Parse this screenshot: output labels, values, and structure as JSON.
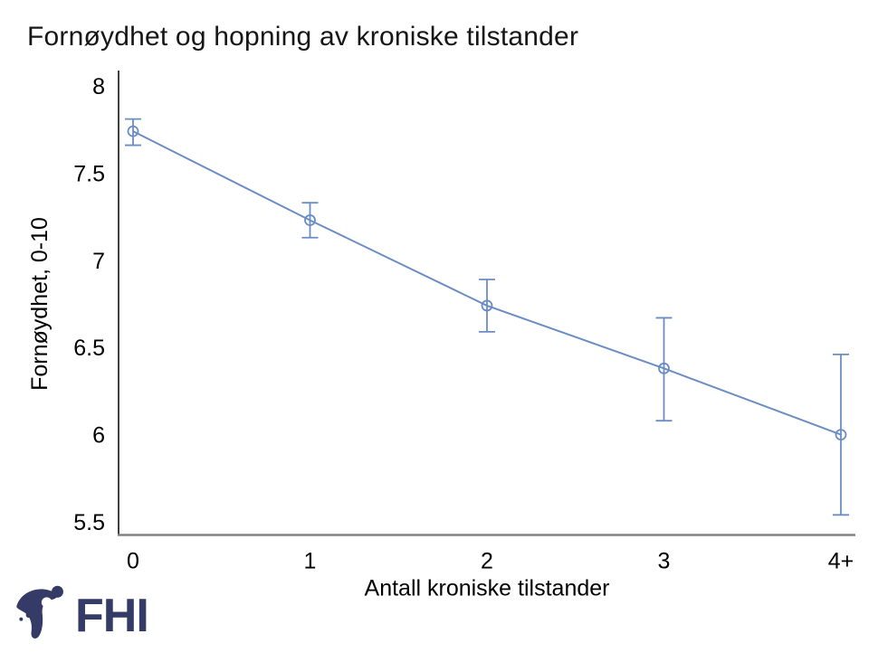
{
  "logo": {
    "text": "FHI",
    "color": "#333b66"
  },
  "chart_data": {
    "type": "line",
    "title": "Fornøydhet og hopning av kroniske tilstander",
    "xlabel": "Antall kroniske tilstander",
    "ylabel": "Fornøydhet, 0-10",
    "categories": [
      "0",
      "1",
      "2",
      "3",
      "4+"
    ],
    "series": [
      {
        "name": "Fornøydhet",
        "values": [
          7.74,
          7.23,
          6.74,
          6.38,
          6.0
        ],
        "ci_low": [
          7.66,
          7.13,
          6.59,
          6.08,
          5.54
        ],
        "ci_high": [
          7.81,
          7.33,
          6.89,
          6.67,
          6.46
        ]
      }
    ],
    "ylim": [
      5.5,
      8
    ],
    "y_ticks": [
      "8",
      "7.5",
      "7",
      "6.5",
      "6",
      "5.5"
    ],
    "grid": false,
    "legend": "none",
    "marker": "open-circle",
    "error_bars": true,
    "line_color": "#6b8dc4",
    "y_axis_color": "#404040",
    "x_axis_color": "#828282"
  }
}
